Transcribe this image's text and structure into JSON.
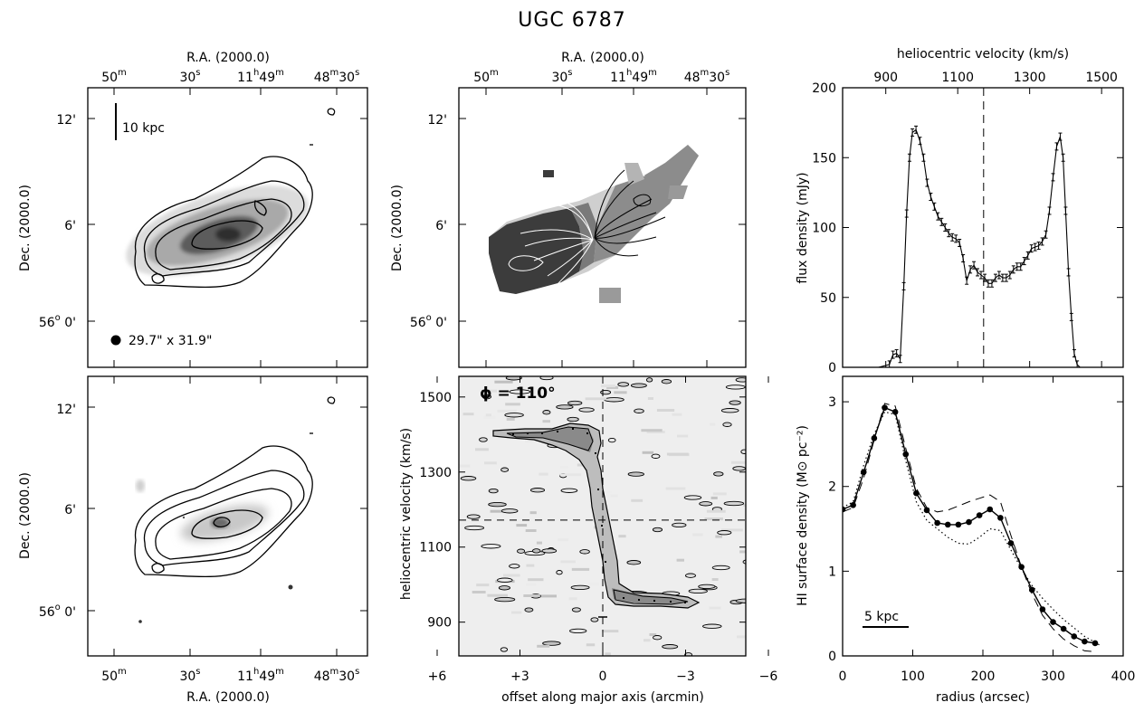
{
  "title": "UGC 6787",
  "colors": {
    "ink": "#000000",
    "paper": "#ffffff",
    "greyscale_dark": "#2a2a2a",
    "greyscale_light": "#e6e6e6"
  },
  "maps": {
    "ra_label": "R.A. (2000.0)",
    "dec_label": "Dec. (2000.0)",
    "ra_ticks": [
      {
        "main": "50",
        "sup": "m",
        "tail": "",
        "tail_sup": ""
      },
      {
        "main": "30",
        "sup": "s",
        "tail": "",
        "tail_sup": ""
      },
      {
        "main": "11",
        "sup": "h",
        "tail": "49",
        "tail_sup": "m"
      },
      {
        "main": "48",
        "sup": "m",
        "tail": "30",
        "tail_sup": "s"
      }
    ],
    "dec_ticks": [
      {
        "main": "12",
        "sup": "'"
      },
      {
        "main": "6",
        "sup": "'"
      },
      {
        "main": "56",
        "sup": "o",
        "tail": " 0'"
      }
    ],
    "scalebar": "10 kpc",
    "beam": "29.7\" x 31.9\""
  },
  "pv": {
    "angle": "ϕ = 110°",
    "ylabel": "heliocentric velocity (km/s)",
    "xlabel": "offset along major axis (arcmin)",
    "yticks": [
      "900",
      "1100",
      "1300",
      "1500"
    ],
    "xticks": [
      "+6",
      "+3",
      "0",
      "−3",
      "−6"
    ]
  },
  "chart_data": [
    {
      "type": "line",
      "panel": "global HI profile",
      "title": "",
      "xlabel": "heliocentric velocity (km/s)",
      "ylabel": "flux density (mJy)",
      "xlim": [
        780,
        1560
      ],
      "ylim": [
        0,
        200
      ],
      "xticks": [
        900,
        1100,
        1300,
        1500
      ],
      "yticks": [
        0,
        50,
        100,
        150,
        200
      ],
      "systemic_velocity": 1172,
      "x": [
        780,
        840,
        880,
        910,
        920,
        930,
        940,
        950,
        958,
        966,
        974,
        984,
        995,
        1005,
        1015,
        1025,
        1035,
        1045,
        1055,
        1065,
        1075,
        1085,
        1095,
        1105,
        1115,
        1125,
        1135,
        1145,
        1155,
        1165,
        1175,
        1185,
        1195,
        1205,
        1215,
        1225,
        1235,
        1245,
        1255,
        1265,
        1275,
        1285,
        1295,
        1305,
        1315,
        1325,
        1335,
        1345,
        1355,
        1365,
        1375,
        1385,
        1393,
        1400,
        1408,
        1416,
        1424,
        1432,
        1440,
        1460,
        1500,
        1560
      ],
      "y": [
        0,
        0,
        0,
        2,
        9,
        10,
        6,
        58,
        110,
        150,
        168,
        170,
        162,
        150,
        132,
        122,
        115,
        108,
        104,
        100,
        96,
        93,
        92,
        89,
        78,
        62,
        70,
        73,
        68,
        66,
        64,
        60,
        60,
        64,
        66,
        64,
        64,
        66,
        70,
        72,
        72,
        76,
        80,
        85,
        86,
        87,
        90,
        95,
        112,
        136,
        158,
        165,
        150,
        112,
        68,
        36,
        10,
        2,
        0,
        0,
        0,
        0
      ]
    },
    {
      "type": "line",
      "panel": "radial HI surface density",
      "title": "",
      "xlabel": "radius (arcsec)",
      "ylabel": "HI surface density (M⊙ pc⁻²)",
      "xlim": [
        0,
        400
      ],
      "ylim": [
        0,
        3.3
      ],
      "xticks": [
        0,
        100,
        200,
        300,
        400
      ],
      "yticks": [
        0,
        1,
        2,
        3
      ],
      "scalebar": "5 kpc",
      "series": [
        {
          "style": "solid-dots",
          "x": [
            0,
            15,
            30,
            45,
            60,
            75,
            90,
            105,
            120,
            135,
            150,
            165,
            180,
            195,
            210,
            225,
            240,
            255,
            270,
            285,
            300,
            315,
            330,
            345,
            360
          ],
          "y": [
            1.73,
            1.78,
            2.17,
            2.57,
            2.93,
            2.88,
            2.38,
            1.92,
            1.72,
            1.57,
            1.55,
            1.55,
            1.58,
            1.66,
            1.73,
            1.63,
            1.33,
            1.05,
            0.78,
            0.55,
            0.4,
            0.32,
            0.23,
            0.17,
            0.15
          ]
        },
        {
          "style": "dashed",
          "x": [
            0,
            15,
            30,
            45,
            60,
            75,
            90,
            105,
            120,
            135,
            150,
            165,
            180,
            195,
            210,
            225,
            240,
            255,
            270,
            285,
            300,
            315,
            330,
            345,
            360
          ],
          "y": [
            1.7,
            1.75,
            2.1,
            2.55,
            2.98,
            2.95,
            2.45,
            1.98,
            1.75,
            1.7,
            1.72,
            1.77,
            1.82,
            1.86,
            1.9,
            1.82,
            1.42,
            1.05,
            0.73,
            0.48,
            0.32,
            0.2,
            0.12,
            0.06,
            0.05
          ]
        },
        {
          "style": "dotted",
          "x": [
            0,
            15,
            30,
            45,
            60,
            75,
            90,
            105,
            120,
            135,
            150,
            165,
            180,
            195,
            210,
            225,
            240,
            255,
            270,
            285,
            300,
            315,
            330,
            345,
            360,
            368
          ],
          "y": [
            1.75,
            1.82,
            2.25,
            2.62,
            2.88,
            2.85,
            2.3,
            1.82,
            1.6,
            1.5,
            1.4,
            1.33,
            1.32,
            1.4,
            1.5,
            1.48,
            1.25,
            1.03,
            0.83,
            0.68,
            0.55,
            0.43,
            0.33,
            0.23,
            0.16,
            0.12
          ]
        }
      ]
    }
  ]
}
